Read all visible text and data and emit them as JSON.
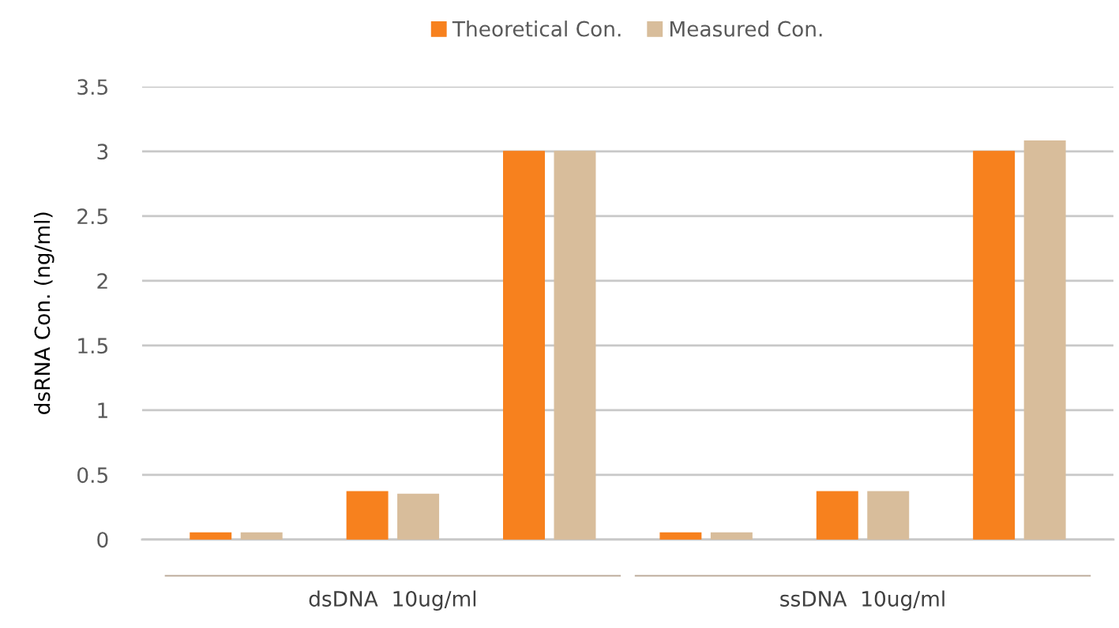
{
  "chart_data": {
    "type": "bar",
    "ylabel": "dsRNA Con. (ng/ml)",
    "categories": [
      null,
      null,
      null,
      null,
      null,
      null
    ],
    "series": [
      {
        "name": "Theoretical Con.",
        "color": "#f7811e",
        "values": [
          0.05,
          0.37,
          3.0,
          0.05,
          0.37,
          3.0
        ]
      },
      {
        "name": "Measured Con.",
        "color": "#d8bd9b",
        "values": [
          0.05,
          0.35,
          3.0,
          0.05,
          0.37,
          3.08
        ]
      }
    ],
    "annotations": [
      "dsDNA  10ug/ml",
      "ssDNA  10ug/ml"
    ],
    "ylim": [
      0,
      3.5
    ],
    "yticks": [
      0,
      0.5,
      1,
      1.5,
      2,
      2.5,
      3,
      3.5
    ],
    "grid": "y",
    "legend": "top"
  }
}
